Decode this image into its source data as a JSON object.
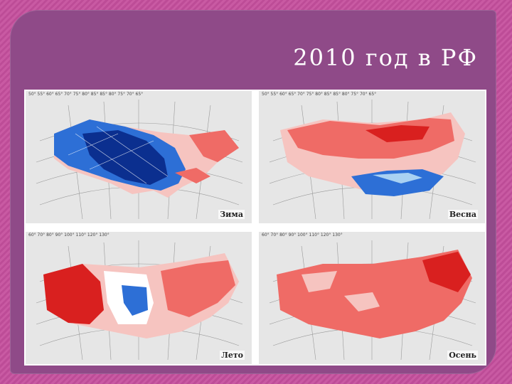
{
  "slide": {
    "title": "2010 год в РФ"
  },
  "maps": [
    {
      "season": "Зима",
      "lon_labels": "50° 55° 60° 65° 70° 75° 80° 85°   85° 80° 75° 70° 65°"
    },
    {
      "season": "Весна",
      "lon_labels": "50° 55° 60° 65° 70° 75° 80° 85°   85° 80° 75° 70° 65°"
    },
    {
      "season": "Лето",
      "lon_labels": "60° 70° 80° 90° 100° 110° 120° 130°"
    },
    {
      "season": "Осень",
      "lon_labels": "60° 70° 80° 90° 100° 110° 120° 130°"
    }
  ],
  "colors": {
    "cold_dark": "#0b2f8f",
    "cold": "#2d6fd6",
    "cold_light": "#a9d1f2",
    "warm_light": "#f6c4c0",
    "warm": "#ef6b66",
    "warm_dark": "#d9201f"
  }
}
